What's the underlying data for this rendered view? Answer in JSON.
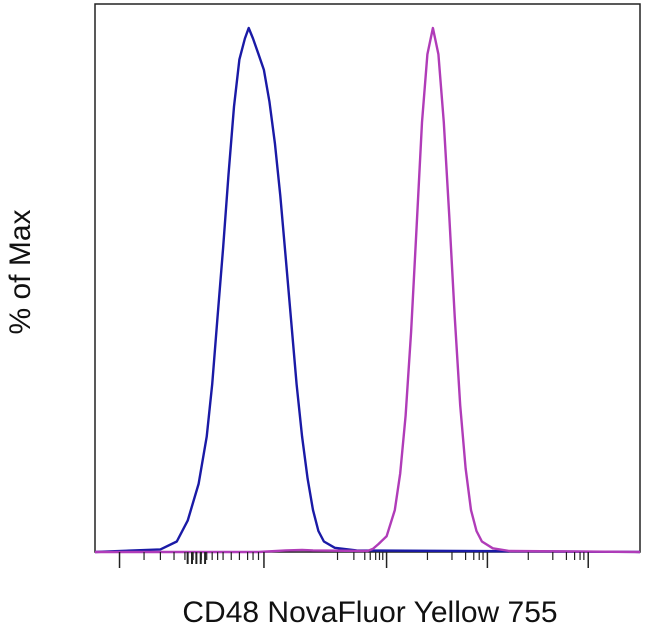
{
  "chart_data": {
    "type": "line",
    "title": "",
    "xlabel": "CD48 NovaFluor Yellow 755",
    "ylabel": "% of Max",
    "x_scale": "biexponential",
    "x_tick_labels_shown": false,
    "y_tick_labels_shown": false,
    "ylim": [
      0,
      100
    ],
    "grid": false,
    "legend": "none",
    "series": [
      {
        "color": "#1a1aa6",
        "points": [
          [
            0.0,
            0
          ],
          [
            0.12,
            0.5
          ],
          [
            0.15,
            2
          ],
          [
            0.17,
            6
          ],
          [
            0.19,
            13
          ],
          [
            0.205,
            22
          ],
          [
            0.215,
            32
          ],
          [
            0.225,
            45
          ],
          [
            0.235,
            58
          ],
          [
            0.245,
            72
          ],
          [
            0.255,
            85
          ],
          [
            0.265,
            94
          ],
          [
            0.275,
            98
          ],
          [
            0.282,
            100
          ],
          [
            0.29,
            98
          ],
          [
            0.3,
            95
          ],
          [
            0.31,
            92
          ],
          [
            0.32,
            86
          ],
          [
            0.33,
            78
          ],
          [
            0.34,
            68
          ],
          [
            0.35,
            56
          ],
          [
            0.36,
            44
          ],
          [
            0.37,
            32
          ],
          [
            0.38,
            22
          ],
          [
            0.39,
            14
          ],
          [
            0.4,
            8
          ],
          [
            0.41,
            4
          ],
          [
            0.42,
            2
          ],
          [
            0.44,
            0.8
          ],
          [
            0.48,
            0.3
          ],
          [
            1.0,
            0
          ]
        ]
      },
      {
        "color": "#b03cb8",
        "points": [
          [
            0.0,
            0
          ],
          [
            0.3,
            0
          ],
          [
            0.35,
            0.3
          ],
          [
            0.38,
            0.4
          ],
          [
            0.4,
            0.3
          ],
          [
            0.5,
            0.2
          ],
          [
            0.51,
            0.6
          ],
          [
            0.52,
            1.5
          ],
          [
            0.535,
            3
          ],
          [
            0.55,
            8
          ],
          [
            0.56,
            15
          ],
          [
            0.57,
            26
          ],
          [
            0.58,
            42
          ],
          [
            0.59,
            62
          ],
          [
            0.6,
            82
          ],
          [
            0.61,
            95
          ],
          [
            0.62,
            100
          ],
          [
            0.63,
            95
          ],
          [
            0.64,
            82
          ],
          [
            0.65,
            64
          ],
          [
            0.66,
            45
          ],
          [
            0.67,
            28
          ],
          [
            0.68,
            16
          ],
          [
            0.69,
            8
          ],
          [
            0.7,
            4
          ],
          [
            0.71,
            2
          ],
          [
            0.73,
            0.7
          ],
          [
            0.76,
            0.2
          ],
          [
            1.0,
            0
          ]
        ]
      }
    ]
  }
}
